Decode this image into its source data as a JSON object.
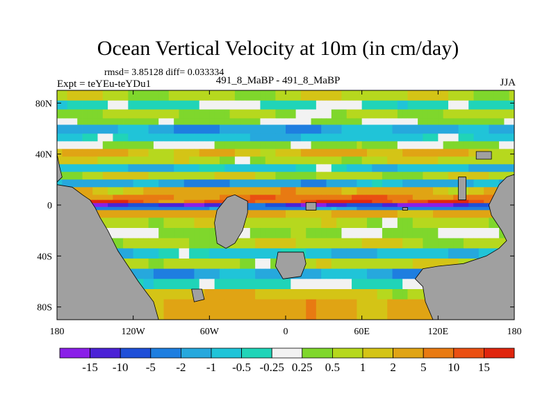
{
  "title": "Ocean Vertical Velocity at 10m (in cm/day)",
  "stats": "rmsd= 3.85128 diff= 0.033334",
  "expt": "Expt = teYEu-teYDu1",
  "cases": "491_8_MaBP - 491_8_MaBP",
  "season": "JJA",
  "chart_data": {
    "type": "heatmap",
    "title": "Ocean Vertical Velocity at 10m (in cm/day)",
    "variable": "vertical velocity difference",
    "units": "cm/day",
    "x_range": [
      -180,
      180
    ],
    "y_range": [
      -90,
      90
    ],
    "x_ticks": [
      {
        "value": -180,
        "label": "180"
      },
      {
        "value": -120,
        "label": "120W"
      },
      {
        "value": -60,
        "label": "60W"
      },
      {
        "value": 0,
        "label": "0"
      },
      {
        "value": 60,
        "label": "60E"
      },
      {
        "value": 120,
        "label": "120E"
      },
      {
        "value": 180,
        "label": "180"
      }
    ],
    "y_ticks": [
      {
        "value": 80,
        "label": "80N"
      },
      {
        "value": 40,
        "label": "40N"
      },
      {
        "value": 0,
        "label": "0"
      },
      {
        "value": -40,
        "label": "40S"
      },
      {
        "value": -80,
        "label": "80S"
      }
    ],
    "colorbar": {
      "labels": [
        "-15",
        "-10",
        "-5",
        "-2",
        "-1",
        "-0.5",
        "-0.25",
        "0.25",
        "0.5",
        "1",
        "2",
        "5",
        "10",
        "15"
      ],
      "colors": [
        "#8a1fe8",
        "#4b22d6",
        "#1f4fd8",
        "#1e7ee0",
        "#26a8dd",
        "#20c4d8",
        "#20d4b8",
        "#f2f2f2",
        "#7fd72c",
        "#b6d81e",
        "#d4c416",
        "#e0a414",
        "#e87a12",
        "#ea4f12",
        "#e0260e"
      ]
    },
    "land_color": "#a0a0a0",
    "bands": [
      {
        "lat_top": 90,
        "lat_bottom": 82,
        "value": 0.75
      },
      {
        "lat_top": 82,
        "lat_bottom": 75,
        "value": -0.3
      },
      {
        "lat_top": 75,
        "lat_bottom": 68,
        "value": 0.5
      },
      {
        "lat_top": 68,
        "lat_bottom": 63,
        "value": 0.3
      },
      {
        "lat_top": 63,
        "lat_bottom": 56,
        "value": -1.5
      },
      {
        "lat_top": 56,
        "lat_bottom": 50,
        "value": -0.75
      },
      {
        "lat_top": 50,
        "lat_bottom": 44,
        "value": 0.3
      },
      {
        "lat_top": 44,
        "lat_bottom": 38,
        "value": 2
      },
      {
        "lat_top": 38,
        "lat_bottom": 32,
        "value": 0.75
      },
      {
        "lat_top": 32,
        "lat_bottom": 26,
        "value": -0.75
      },
      {
        "lat_top": 26,
        "lat_bottom": 20,
        "value": 0.75
      },
      {
        "lat_top": 20,
        "lat_bottom": 14,
        "value": -1.5
      },
      {
        "lat_top": 14,
        "lat_bottom": 8,
        "value": 3
      },
      {
        "lat_top": 8,
        "lat_bottom": 4,
        "value": 7
      },
      {
        "lat_top": 4,
        "lat_bottom": 1.5,
        "value": 12
      },
      {
        "lat_top": 1.5,
        "lat_bottom": -1.5,
        "value": -12
      },
      {
        "lat_top": -1.5,
        "lat_bottom": -4,
        "value": -3
      },
      {
        "lat_top": -4,
        "lat_bottom": -10,
        "value": 3
      },
      {
        "lat_top": -10,
        "lat_bottom": -18,
        "value": 0.75
      },
      {
        "lat_top": -18,
        "lat_bottom": -26,
        "value": 0.3
      },
      {
        "lat_top": -26,
        "lat_bottom": -34,
        "value": 0.75
      },
      {
        "lat_top": -34,
        "lat_bottom": -42,
        "value": -0.75
      },
      {
        "lat_top": -42,
        "lat_bottom": -50,
        "value": 0.75
      },
      {
        "lat_top": -50,
        "lat_bottom": -58,
        "value": -1.5
      },
      {
        "lat_top": -58,
        "lat_bottom": -66,
        "value": -0.3
      },
      {
        "lat_top": -66,
        "lat_bottom": -74,
        "value": 1.5
      },
      {
        "lat_top": -74,
        "lat_bottom": -90,
        "value": 3
      }
    ]
  }
}
